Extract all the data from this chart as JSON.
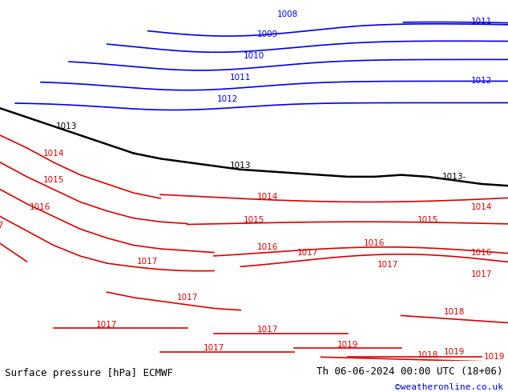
{
  "title_left": "Surface pressure [hPa] ECMWF",
  "title_right": "Th 06-06-2024 00:00 UTC (18+06)",
  "copyright": "©weatheronline.co.uk",
  "sea_color": "#c8c8d8",
  "land_color": "#b0e090",
  "border_color": "#808080",
  "blue_color": "#0000ee",
  "black_color": "#000000",
  "red_color": "#dd0000",
  "label_fs": 7.5,
  "title_fs": 9,
  "copy_fs": 8,
  "copy_color": "#0000cc",
  "lon_min": -12,
  "lon_max": 26,
  "lat_min": 43,
  "lat_max": 63
}
